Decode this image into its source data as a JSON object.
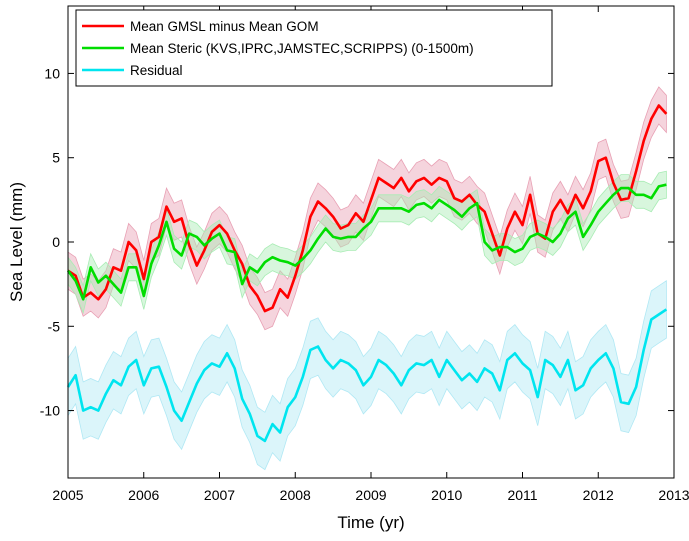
{
  "chart_data": {
    "type": "line",
    "title": "",
    "xlabel": "Time (yr)",
    "ylabel": "Sea Level (mm)",
    "xlim": [
      2005,
      2013
    ],
    "ylim": [
      -14,
      14
    ],
    "xticks": [
      2005,
      2006,
      2007,
      2008,
      2009,
      2010,
      2011,
      2012,
      2013
    ],
    "yticks": [
      -10,
      -5,
      0,
      5,
      10
    ],
    "grid": false,
    "legend_position": "top-left",
    "series": [
      {
        "name": "Mean GMSL minus Mean GOM",
        "color": "#ff0000",
        "band_color": "#e8a0b4",
        "band": 1.1,
        "x": [
          2005.0,
          2005.1,
          2005.2,
          2005.3,
          2005.4,
          2005.5,
          2005.6,
          2005.7,
          2005.8,
          2005.9,
          2006.0,
          2006.1,
          2006.2,
          2006.3,
          2006.4,
          2006.5,
          2006.6,
          2006.7,
          2006.8,
          2006.9,
          2007.0,
          2007.1,
          2007.2,
          2007.3,
          2007.4,
          2007.5,
          2007.6,
          2007.7,
          2007.8,
          2007.9,
          2008.0,
          2008.1,
          2008.2,
          2008.3,
          2008.4,
          2008.5,
          2008.6,
          2008.7,
          2008.8,
          2008.9,
          2009.0,
          2009.1,
          2009.2,
          2009.3,
          2009.4,
          2009.5,
          2009.6,
          2009.7,
          2009.8,
          2009.9,
          2010.0,
          2010.1,
          2010.2,
          2010.3,
          2010.4,
          2010.5,
          2010.6,
          2010.7,
          2010.8,
          2010.9,
          2011.0,
          2011.1,
          2011.2,
          2011.3,
          2011.4,
          2011.5,
          2011.6,
          2011.7,
          2011.8,
          2011.9,
          2012.0,
          2012.1,
          2012.2,
          2012.3,
          2012.4,
          2012.5,
          2012.6,
          2012.7,
          2012.8,
          2012.9
        ],
        "values": [
          -1.7,
          -2.0,
          -3.3,
          -3.0,
          -3.4,
          -2.8,
          -1.5,
          -1.7,
          0.0,
          -0.5,
          -2.2,
          0.0,
          0.3,
          2.1,
          1.2,
          1.4,
          -0.2,
          -1.4,
          -0.5,
          0.6,
          1.0,
          0.5,
          -0.5,
          -1.3,
          -2.6,
          -3.2,
          -4.1,
          -3.9,
          -2.8,
          -3.3,
          -2.0,
          -0.5,
          1.5,
          2.4,
          2.0,
          1.5,
          0.8,
          1.0,
          1.7,
          1.2,
          2.5,
          3.8,
          3.5,
          3.2,
          3.8,
          3.0,
          3.6,
          3.8,
          3.4,
          3.8,
          3.6,
          2.6,
          2.4,
          2.8,
          2.2,
          1.8,
          0.5,
          -0.8,
          0.8,
          1.8,
          1.0,
          2.8,
          0.5,
          0.2,
          1.8,
          2.5,
          1.7,
          2.8,
          2.0,
          3.0,
          4.8,
          5.0,
          3.5,
          2.5,
          2.6,
          4.2,
          6.0,
          7.3,
          8.1,
          7.6
        ]
      },
      {
        "name": "Mean Steric (KVS,IPRC,JAMSTEC,SCRIPPS) (0-1500m)",
        "color": "#00dd00",
        "band_color": "#a8ecb4",
        "band": 0.8,
        "x": [
          2005.0,
          2005.1,
          2005.2,
          2005.3,
          2005.4,
          2005.5,
          2005.6,
          2005.7,
          2005.8,
          2005.9,
          2006.0,
          2006.1,
          2006.2,
          2006.3,
          2006.4,
          2006.5,
          2006.6,
          2006.7,
          2006.8,
          2006.9,
          2007.0,
          2007.1,
          2007.2,
          2007.3,
          2007.4,
          2007.5,
          2007.6,
          2007.7,
          2007.8,
          2007.9,
          2008.0,
          2008.1,
          2008.2,
          2008.3,
          2008.4,
          2008.5,
          2008.6,
          2008.7,
          2008.8,
          2008.9,
          2009.0,
          2009.1,
          2009.2,
          2009.3,
          2009.4,
          2009.5,
          2009.6,
          2009.7,
          2009.8,
          2009.9,
          2010.0,
          2010.1,
          2010.2,
          2010.3,
          2010.4,
          2010.5,
          2010.6,
          2010.7,
          2010.8,
          2010.9,
          2011.0,
          2011.1,
          2011.2,
          2011.3,
          2011.4,
          2011.5,
          2011.6,
          2011.7,
          2011.8,
          2011.9,
          2012.0,
          2012.1,
          2012.2,
          2012.3,
          2012.4,
          2012.5,
          2012.6,
          2012.7,
          2012.8,
          2012.9
        ],
        "values": [
          -1.7,
          -2.3,
          -3.4,
          -1.5,
          -2.4,
          -2.0,
          -2.5,
          -3.0,
          -1.5,
          -1.5,
          -3.2,
          -1.3,
          -0.2,
          1.2,
          -0.4,
          -0.8,
          0.5,
          0.3,
          -0.2,
          0.2,
          0.5,
          -0.5,
          -0.6,
          -2.5,
          -1.5,
          -1.8,
          -1.2,
          -0.9,
          -1.1,
          -1.2,
          -1.4,
          -1.0,
          -0.5,
          0.2,
          0.8,
          0.3,
          0.2,
          0.3,
          0.3,
          0.8,
          1.2,
          2.0,
          2.0,
          2.0,
          2.0,
          1.8,
          2.2,
          2.3,
          2.0,
          2.5,
          2.2,
          1.9,
          1.5,
          2.0,
          2.3,
          0.0,
          -0.5,
          -0.3,
          -0.3,
          -0.6,
          -0.4,
          0.3,
          0.5,
          0.3,
          0.0,
          0.5,
          1.4,
          1.8,
          0.3,
          1.0,
          1.8,
          2.3,
          2.8,
          3.2,
          3.2,
          2.8,
          2.8,
          2.6,
          3.3,
          3.4
        ]
      },
      {
        "name": "Residual",
        "color": "#00e5ef",
        "band_color": "#b0e8f4",
        "band": 1.7,
        "x": [
          2005.0,
          2005.1,
          2005.2,
          2005.3,
          2005.4,
          2005.5,
          2005.6,
          2005.7,
          2005.8,
          2005.9,
          2006.0,
          2006.1,
          2006.2,
          2006.3,
          2006.4,
          2006.5,
          2006.6,
          2006.7,
          2006.8,
          2006.9,
          2007.0,
          2007.1,
          2007.2,
          2007.3,
          2007.4,
          2007.5,
          2007.6,
          2007.7,
          2007.8,
          2007.9,
          2008.0,
          2008.1,
          2008.2,
          2008.3,
          2008.4,
          2008.5,
          2008.6,
          2008.7,
          2008.8,
          2008.9,
          2009.0,
          2009.1,
          2009.2,
          2009.3,
          2009.4,
          2009.5,
          2009.6,
          2009.7,
          2009.8,
          2009.9,
          2010.0,
          2010.1,
          2010.2,
          2010.3,
          2010.4,
          2010.5,
          2010.6,
          2010.7,
          2010.8,
          2010.9,
          2011.0,
          2011.1,
          2011.2,
          2011.3,
          2011.4,
          2011.5,
          2011.6,
          2011.7,
          2011.8,
          2011.9,
          2012.0,
          2012.1,
          2012.2,
          2012.3,
          2012.4,
          2012.5,
          2012.6,
          2012.7,
          2012.8,
          2012.9
        ],
        "values": [
          -8.6,
          -7.9,
          -10.0,
          -9.8,
          -10.0,
          -9.0,
          -8.2,
          -8.5,
          -7.4,
          -7.0,
          -8.5,
          -7.5,
          -7.4,
          -8.6,
          -10.0,
          -10.6,
          -9.5,
          -8.4,
          -7.6,
          -7.2,
          -7.4,
          -6.6,
          -7.5,
          -9.3,
          -10.2,
          -11.5,
          -11.8,
          -10.8,
          -11.3,
          -9.8,
          -9.2,
          -8.0,
          -6.4,
          -6.2,
          -7.0,
          -7.5,
          -7.0,
          -7.2,
          -7.6,
          -8.5,
          -8.0,
          -7.0,
          -7.3,
          -7.8,
          -8.5,
          -7.6,
          -7.2,
          -7.3,
          -7.0,
          -8.0,
          -7.0,
          -7.6,
          -8.2,
          -7.8,
          -8.3,
          -7.5,
          -7.8,
          -8.8,
          -7.0,
          -6.6,
          -7.2,
          -7.6,
          -9.2,
          -7.0,
          -7.3,
          -8.0,
          -7.0,
          -8.8,
          -8.5,
          -7.5,
          -7.0,
          -6.6,
          -7.5,
          -9.5,
          -9.6,
          -8.6,
          -6.4,
          -4.6,
          -4.3,
          -4.0
        ]
      }
    ]
  }
}
